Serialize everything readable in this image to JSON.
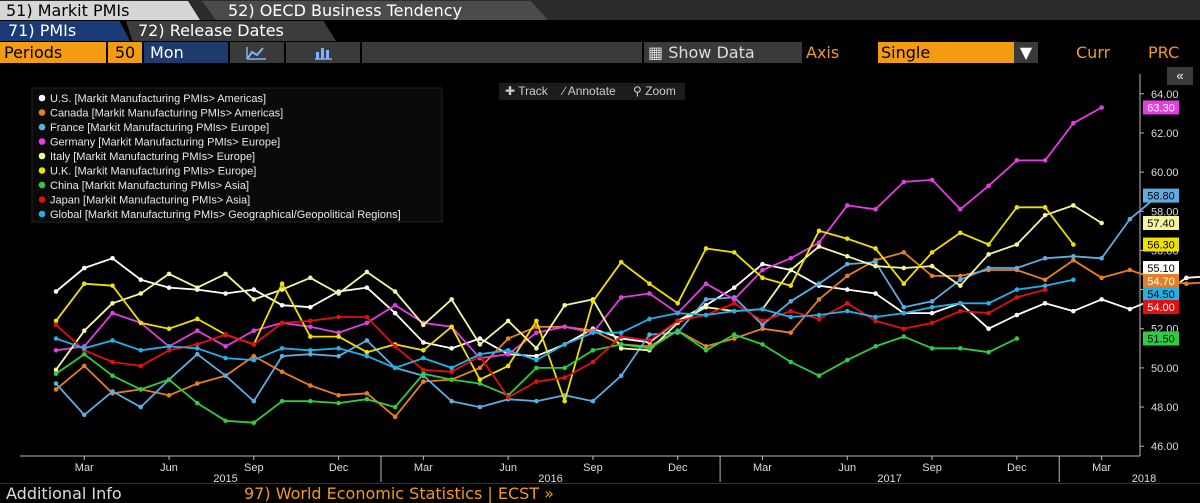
{
  "tabs": [
    {
      "label": "51) Markit PMIs"
    },
    {
      "label": "52) OECD Business Tendency"
    }
  ],
  "subtabs": [
    {
      "label": "71) PMIs"
    },
    {
      "label": "72) Release Dates"
    }
  ],
  "toolbar": {
    "periods_label": "Periods",
    "periods_value": "50",
    "frequency": "Mon",
    "show_data_label": "Show Data",
    "axis_label": "Axis",
    "axis_value": "Single",
    "curr_label": "Curr",
    "prc_label": "PRC"
  },
  "chart_tools": {
    "track": "Track",
    "annotate": "Annotate",
    "zoom": "Zoom",
    "collapse": "«"
  },
  "footer": {
    "left": "Additional Info",
    "right": "97) World Economic Statistics | ECST »"
  },
  "colors": {
    "us": "#ffffff",
    "canada": "#e67e22",
    "france": "#5dade2",
    "germany": "#e63ce6",
    "italy": "#f5f5a0",
    "uk": "#f0e000",
    "china": "#2ecc40",
    "japan": "#e01010",
    "global": "#22b0e6"
  },
  "chart_data": {
    "type": "line",
    "x_tick_labels": [
      "Mar",
      "Jun",
      "Sep",
      "Dec",
      "Mar",
      "Jun",
      "Sep",
      "Dec",
      "Mar",
      "Jun",
      "Sep",
      "Dec",
      "Mar"
    ],
    "x_year_labels": [
      "2015",
      "2016",
      "2017",
      "2018"
    ],
    "y_tick_labels": [
      "64.00",
      "62.00",
      "60.00",
      "58.00",
      "56.00",
      "54.00",
      "52.00",
      "50.00",
      "48.00",
      "46.00"
    ],
    "ylim": [
      45.5,
      64.5
    ],
    "grid": false,
    "legend_position": "top-left",
    "series": [
      {
        "name": "U.S. [Markit Manufacturing PMIs> Americas]",
        "key": "us",
        "last_label": "55.10",
        "values": [
          53.9,
          55.1,
          55.6,
          54.5,
          54.1,
          54.0,
          53.8,
          54.0,
          53.2,
          53.1,
          53.9,
          54.1,
          52.8,
          51.3,
          51.0,
          51.5,
          50.7,
          50.6,
          51.2,
          52.0,
          51.5,
          51.3,
          52.4,
          53.2,
          54.1,
          55.3,
          55.0,
          54.2,
          54.0,
          53.8,
          52.8,
          52.8,
          53.3,
          52.0,
          52.7,
          53.3,
          52.9,
          53.5,
          53.0,
          53.6,
          54.6,
          54.7,
          54.0,
          55.1
        ]
      },
      {
        "name": "Canada [Markit Manufacturing PMIs> Americas]",
        "key": "canada",
        "last_label": "54.70",
        "values": [
          48.9,
          50.1,
          48.7,
          48.9,
          48.6,
          49.2,
          49.6,
          50.6,
          49.8,
          49.1,
          48.6,
          48.7,
          47.5,
          49.3,
          49.4,
          50.0,
          51.5,
          52.1,
          52.1,
          51.9,
          51.2,
          51.1,
          51.9,
          51.1,
          51.5,
          52.0,
          51.8,
          53.5,
          54.7,
          55.5,
          55.9,
          54.7,
          54.7,
          55.0,
          55.0,
          54.5,
          55.5,
          54.6,
          55.0,
          54.5,
          54.3,
          54.4,
          54.7,
          54.7
        ]
      },
      {
        "name": "France [Markit Manufacturing PMIs> Europe]",
        "key": "france",
        "last_label": "58.80",
        "values": [
          49.2,
          47.6,
          48.8,
          48.0,
          49.4,
          50.7,
          49.6,
          48.3,
          50.6,
          50.7,
          50.6,
          51.4,
          50.0,
          49.6,
          48.3,
          48.0,
          48.4,
          48.3,
          48.6,
          48.3,
          49.6,
          51.7,
          51.8,
          53.5,
          53.6,
          52.2,
          53.4,
          54.3,
          55.3,
          55.4,
          53.1,
          53.4,
          54.5,
          55.1,
          55.1,
          55.6,
          55.7,
          55.6,
          57.6,
          58.8
        ]
      },
      {
        "name": "Germany [Markit Manufacturing PMIs> Europe]",
        "key": "germany",
        "last_label": "63.30",
        "values": [
          50.9,
          51.1,
          52.8,
          52.3,
          51.1,
          51.9,
          51.1,
          51.9,
          52.3,
          52.1,
          51.8,
          52.3,
          53.2,
          52.3,
          52.1,
          50.5,
          50.7,
          51.8,
          52.1,
          51.8,
          53.6,
          53.8,
          52.8,
          54.3,
          53.5,
          55.0,
          55.6,
          56.4,
          58.3,
          58.1,
          59.5,
          59.6,
          58.1,
          59.3,
          60.6,
          60.6,
          62.5,
          63.3
        ]
      },
      {
        "name": "Italy [Markit Manufacturing PMIs> Europe]",
        "key": "italy",
        "last_label": "57.40",
        "values": [
          49.9,
          51.9,
          53.3,
          53.8,
          54.8,
          54.1,
          54.8,
          53.5,
          54.0,
          54.6,
          53.8,
          54.9,
          53.9,
          52.2,
          53.5,
          51.2,
          52.4,
          51.0,
          53.2,
          53.5,
          51.0,
          50.9,
          52.3,
          53.1,
          52.9,
          53.0,
          55.0,
          56.2,
          55.7,
          55.2,
          55.1,
          55.2,
          54.2,
          55.8,
          56.3,
          57.8,
          58.3,
          57.4
        ]
      },
      {
        "name": "U.K. [Markit Manufacturing PMIs> Europe]",
        "key": "uk",
        "last_label": "56.30",
        "values": [
          52.4,
          54.3,
          54.2,
          52.3,
          52.0,
          52.5,
          51.7,
          51.2,
          54.3,
          51.6,
          51.6,
          50.8,
          51.2,
          50.9,
          52.1,
          49.4,
          50.1,
          52.4,
          48.3,
          53.4,
          55.4,
          54.3,
          53.3,
          56.1,
          55.9,
          54.6,
          54.2,
          57.0,
          56.6,
          56.1,
          54.3,
          55.9,
          56.9,
          56.3,
          58.2,
          58.2,
          56.3
        ]
      },
      {
        "name": "China [Markit Manufacturing PMIs> Asia]",
        "key": "china",
        "last_label": "51.50",
        "values": [
          49.7,
          50.7,
          49.6,
          48.9,
          49.4,
          48.2,
          47.3,
          47.2,
          48.3,
          48.3,
          48.2,
          48.4,
          48.0,
          49.7,
          49.4,
          49.2,
          48.6,
          50.0,
          50.0,
          50.9,
          51.2,
          51.0,
          51.9,
          50.9,
          51.7,
          51.2,
          50.3,
          49.6,
          50.4,
          51.1,
          51.6,
          51.0,
          51.0,
          50.8,
          51.5
        ]
      },
      {
        "name": "Japan [Markit Manufacturing PMIs> Asia]",
        "key": "japan",
        "last_label": "54.00",
        "values": [
          52.2,
          50.9,
          50.3,
          50.1,
          50.9,
          51.2,
          51.7,
          51.2,
          52.3,
          52.4,
          52.6,
          52.6,
          51.1,
          49.9,
          49.8,
          50.6,
          48.5,
          49.3,
          49.5,
          50.3,
          51.6,
          51.4,
          52.4,
          52.7,
          53.3,
          52.4,
          52.9,
          52.5,
          53.3,
          52.4,
          52.0,
          52.3,
          52.9,
          52.8,
          53.6,
          54.0
        ]
      },
      {
        "name": "Global [Markit Manufacturing PMIs> Geographical/Geopolitical Regions]",
        "key": "global",
        "last_label": "54.50",
        "values": [
          51.5,
          51.0,
          51.4,
          50.9,
          51.1,
          51.0,
          50.5,
          50.4,
          51.0,
          50.9,
          51.0,
          50.6,
          50.0,
          50.5,
          50.0,
          50.7,
          50.9,
          50.4,
          51.2,
          51.8,
          51.8,
          52.5,
          52.8,
          52.7,
          52.9,
          53.0,
          52.6,
          52.7,
          52.9,
          52.6,
          52.8,
          53.1,
          53.3,
          53.3,
          54.0,
          54.2,
          54.5
        ]
      }
    ]
  }
}
